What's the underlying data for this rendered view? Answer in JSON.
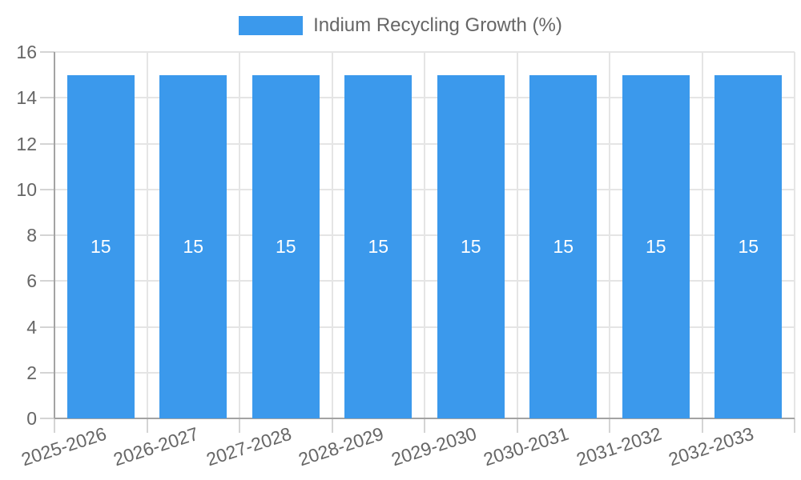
{
  "chart_data": {
    "type": "bar",
    "title": "Indium Recycling Growth (%)",
    "categories": [
      "2025-2026",
      "2026-2027",
      "2027-2028",
      "2028-2029",
      "2029-2030",
      "2030-2031",
      "2031-2032",
      "2032-2033"
    ],
    "series": [
      {
        "name": "Indium Recycling Growth (%)",
        "values": [
          15,
          15,
          15,
          15,
          15,
          15,
          15,
          15
        ]
      }
    ],
    "bar_value_labels": [
      "15",
      "15",
      "15",
      "15",
      "15",
      "15",
      "15",
      "15"
    ],
    "xlabel": "",
    "ylabel": "",
    "ylim": [
      0,
      16
    ],
    "yticks": [
      0,
      2,
      4,
      6,
      8,
      10,
      12,
      14,
      16
    ],
    "grid": true,
    "legend_position": "top",
    "x_label_rotation_deg": -18
  },
  "legend": {
    "label": "Indium Recycling Growth (%)"
  },
  "colors": {
    "bar": "#3b99ec",
    "bar_label": "#ffffff",
    "grid": "#e5e5e5",
    "tick": "#d4d4d4",
    "axis": "#a3a3a3",
    "text": "#666666",
    "background": "#ffffff"
  }
}
